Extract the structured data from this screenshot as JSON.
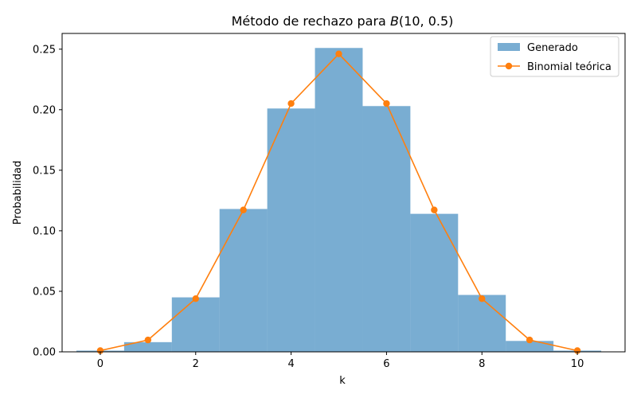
{
  "chart_data": {
    "type": "bar",
    "title_prefix": "Método de rechazo para ",
    "title_math": "B",
    "title_args": "(10, 0.5)",
    "xlabel": "k",
    "ylabel": "Probabilidad",
    "xlim": [
      -0.8,
      11.0
    ],
    "ylim": [
      0,
      0.263
    ],
    "xticks": [
      0,
      2,
      4,
      6,
      8,
      10
    ],
    "yticks": [
      0.0,
      0.05,
      0.1,
      0.15,
      0.2,
      0.25
    ],
    "ytick_labels": [
      "0.00",
      "0.05",
      "0.10",
      "0.15",
      "0.20",
      "0.25"
    ],
    "legend_position": "top-right",
    "series": [
      {
        "name": "Generado",
        "kind": "histogram",
        "color": "#1f77b4",
        "opacity": 0.6,
        "bin_width": 1,
        "x": [
          0,
          1,
          2,
          3,
          4,
          5,
          6,
          7,
          8,
          9,
          10
        ],
        "values": [
          0.001,
          0.008,
          0.045,
          0.118,
          0.201,
          0.251,
          0.203,
          0.114,
          0.047,
          0.009,
          0.001
        ]
      },
      {
        "name": "Binomial teórica",
        "kind": "line-markers",
        "color": "#ff7f0e",
        "x": [
          0,
          1,
          2,
          3,
          4,
          5,
          6,
          7,
          8,
          9,
          10
        ],
        "values": [
          0.001,
          0.0098,
          0.0439,
          0.1172,
          0.2051,
          0.2461,
          0.2051,
          0.1172,
          0.0439,
          0.0098,
          0.001
        ]
      }
    ]
  }
}
